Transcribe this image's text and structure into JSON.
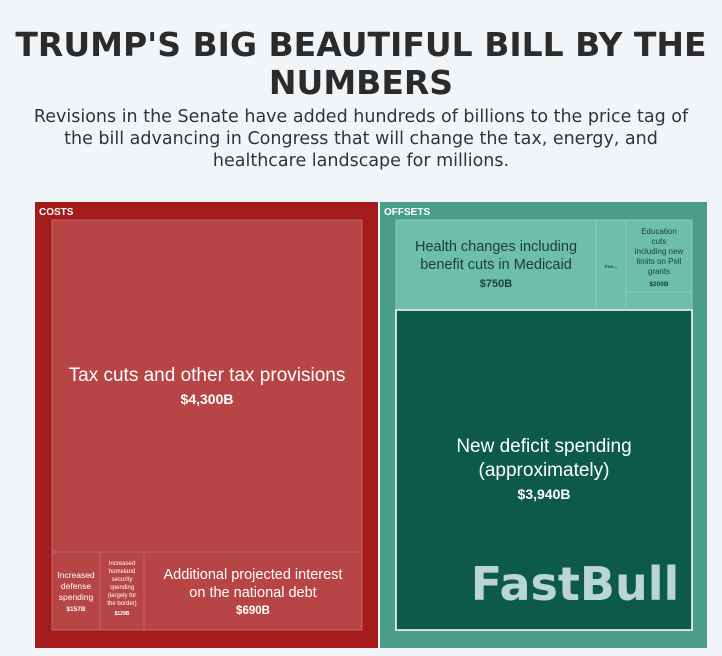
{
  "header": {
    "title": "TRUMP'S BIG BEAUTIFUL BILL BY THE NUMBERS",
    "subtitle": "Revisions in the Senate have added hundreds of billions to the price tag of the bill advancing in Congress that will change the tax, energy, and healthcare landscape for millions."
  },
  "watermark": "FastBull",
  "chart_data": {
    "type": "treemap",
    "unit": "$B",
    "groups": [
      {
        "name": "COSTS",
        "color": "#a31b1b",
        "items": [
          {
            "label": "Tax cuts and other tax provisions",
            "value_label": "$4,300B",
            "value": 4300,
            "color": "#b84545"
          },
          {
            "label": "Increased defense spending",
            "value_label": "$157B",
            "value": 157,
            "color": "#b84545"
          },
          {
            "label": "Increased homeland security spending (largely for the border)",
            "value_label": "$129B",
            "value": 129,
            "color": "#b84545"
          },
          {
            "label": "Additional projected interest on the national debt",
            "value_label": "$690B",
            "value": 690,
            "color": "#b84545"
          }
        ]
      },
      {
        "name": "OFFSETS",
        "color": "#4a9e88",
        "items": [
          {
            "label": "Health changes including benefit cuts in Medicaid",
            "value_label": "$750B",
            "value": 750,
            "color": "#6dbfa9"
          },
          {
            "label": "Foo...",
            "value_label": "",
            "value": null,
            "color": "#6dbfa9"
          },
          {
            "label": "Education cuts including new limits on Pell grants",
            "value_label": "$200B",
            "value": 200,
            "color": "#6dbfa9"
          },
          {
            "label": "New deficit spending (approximately)",
            "value_label": "$3,940B",
            "value": 3940,
            "color": "#0d5a4a"
          }
        ]
      }
    ]
  }
}
